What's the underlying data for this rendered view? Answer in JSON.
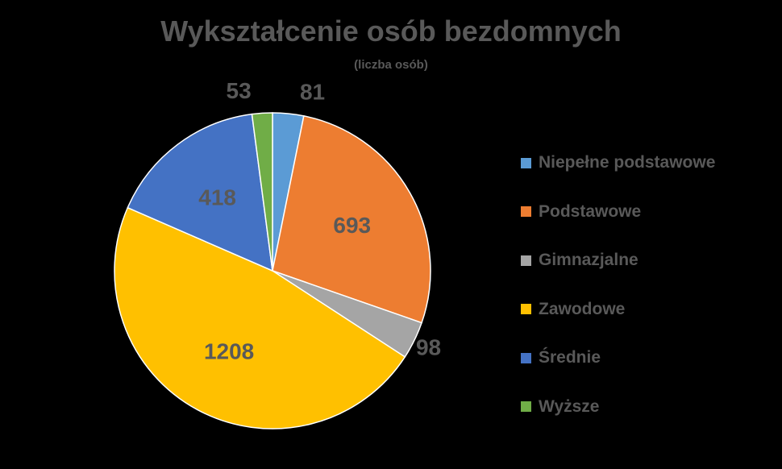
{
  "chart_data": {
    "type": "pie",
    "title": "Wykształcenie osób bezdomnych",
    "subtitle": "(liczba osób)",
    "categories": [
      "Niepełne podstawowe",
      "Podstawowe",
      "Gimnazjalne",
      "Zawodowe",
      "Średnie",
      "Wyższe"
    ],
    "values": [
      81,
      693,
      98,
      1208,
      418,
      53
    ],
    "colors": [
      "#5B9BD5",
      "#ED7D31",
      "#A5A5A5",
      "#FFC000",
      "#4472C4",
      "#70AD47"
    ],
    "data_labels": [
      "81",
      "693",
      "98",
      "1208",
      "418",
      "53"
    ],
    "legend_position": "right",
    "background": "#000000",
    "label_color": "#595959"
  }
}
